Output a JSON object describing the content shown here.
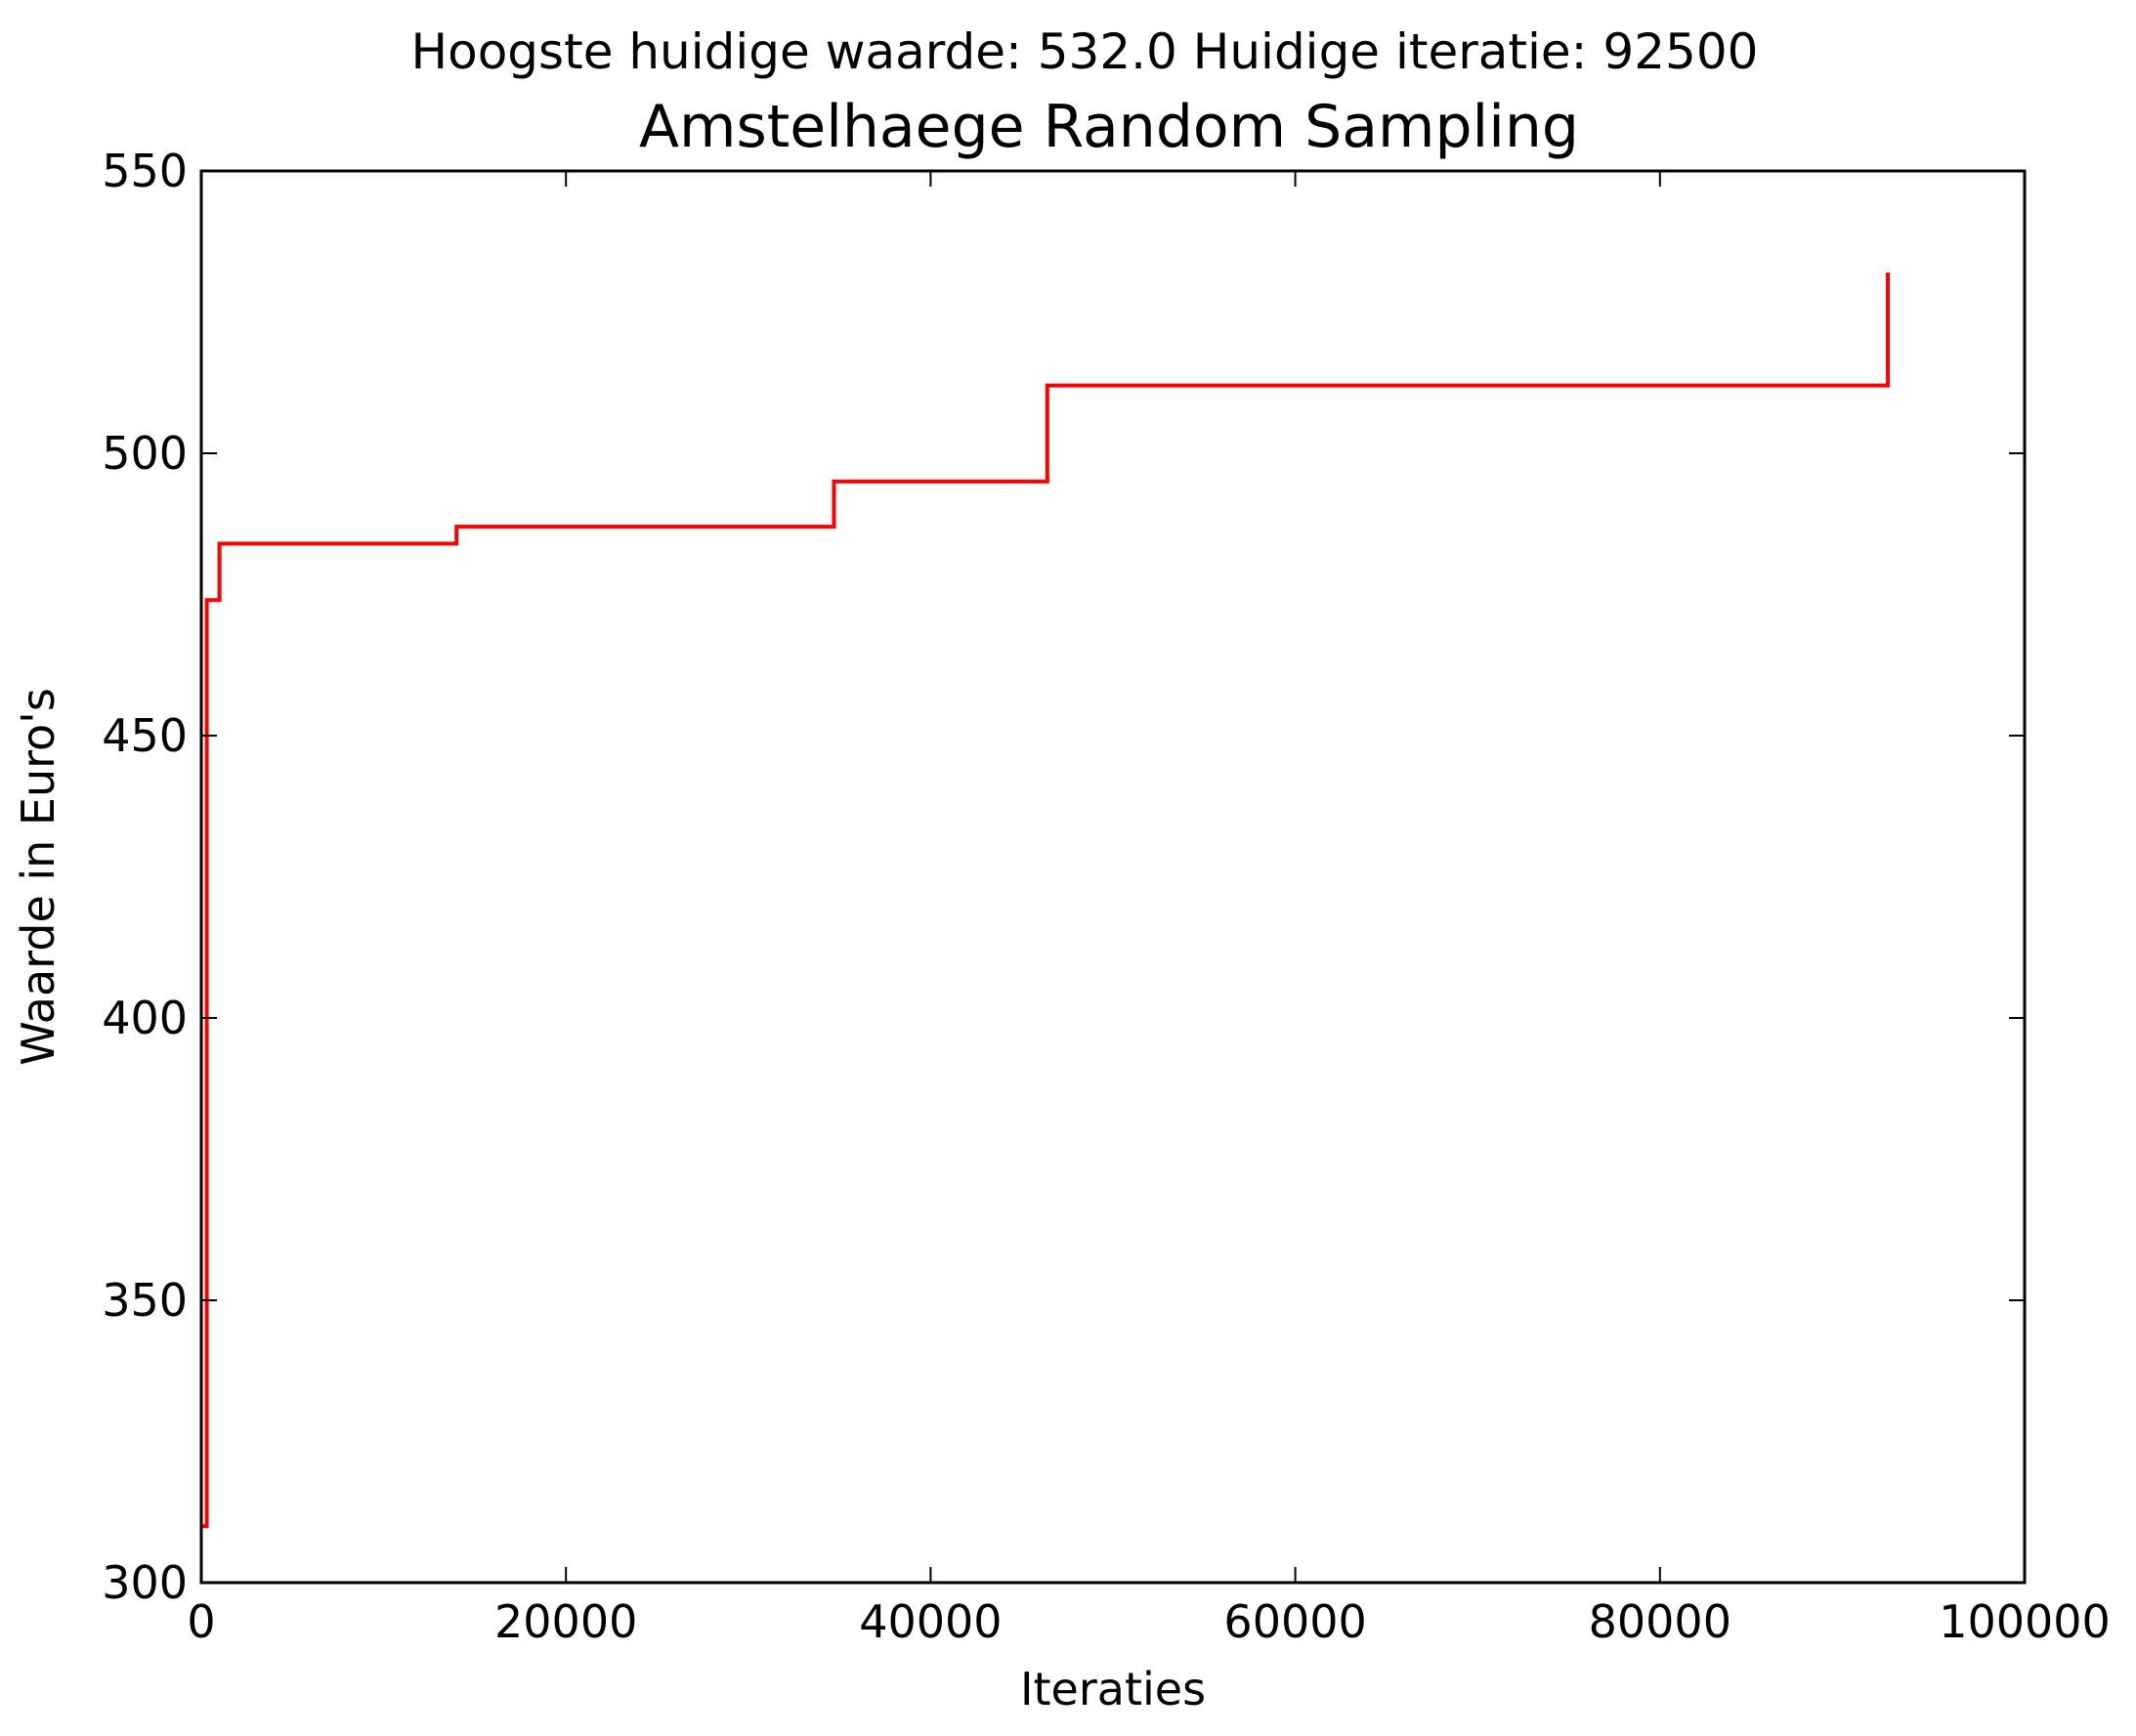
{
  "chart_data": {
    "type": "line",
    "suptitle": "Hoogste huidige waarde: 532.0 Huidige iteratie: 92500",
    "title": "Amstelhaege Random Sampling",
    "xlabel": "Iteraties",
    "ylabel": "Waarde in Euro's",
    "xlim": [
      0,
      100000
    ],
    "ylim": [
      300,
      550
    ],
    "xticks": [
      0,
      20000,
      40000,
      60000,
      80000,
      100000
    ],
    "xtick_labels": [
      "0",
      "20000",
      "40000",
      "60000",
      "80000",
      "100000"
    ],
    "yticks": [
      300,
      350,
      400,
      450,
      500,
      550
    ],
    "ytick_labels": [
      "300",
      "350",
      "400",
      "450",
      "500",
      "550"
    ],
    "grid": false,
    "series": [
      {
        "color": "#ff0000",
        "step": true,
        "x": [
          0,
          300,
          1000,
          14000,
          34700,
          46400,
          92500
        ],
        "y": [
          310,
          474,
          484,
          487,
          495,
          512,
          532
        ]
      }
    ]
  }
}
